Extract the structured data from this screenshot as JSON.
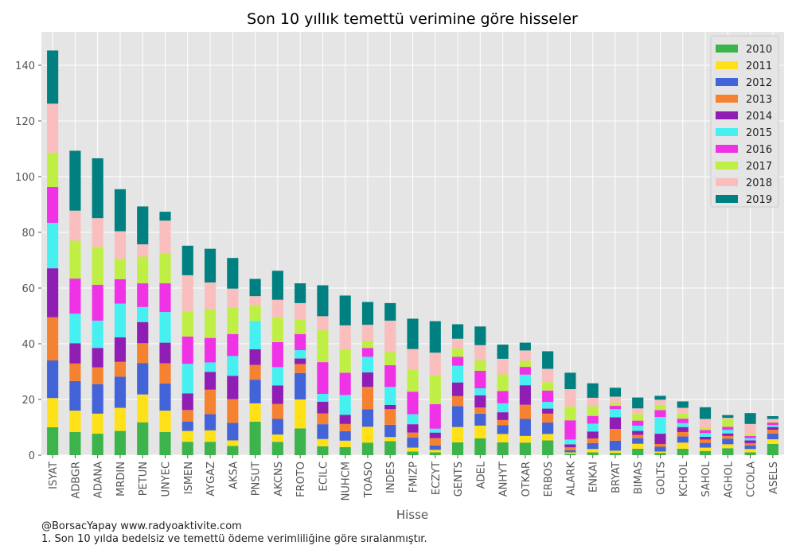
{
  "chart_data": {
    "type": "bar",
    "stacked": true,
    "title": "Son 10 yıllık temettü verimine göre hisseler",
    "xlabel": "Hisse",
    "ylabel": "",
    "ylim": [
      0,
      152
    ],
    "yticks": [
      0,
      20,
      40,
      60,
      80,
      100,
      120,
      140
    ],
    "grid": true,
    "legend_position": "top-right",
    "categories": [
      "ISYAT",
      "ADBGR",
      "ADANA",
      "MRDIN",
      "PETUN",
      "UNYEC",
      "ISMEN",
      "AYGAZ",
      "AKSA",
      "PNSUT",
      "AKCNS",
      "FROTO",
      "ECILC",
      "NUHCM",
      "TOASO",
      "INDES",
      "FMIZP",
      "ECZYT",
      "GENTS",
      "ADEL",
      "ANHYT",
      "OTKAR",
      "ERBOS",
      "ALARK",
      "ENKAI",
      "BRYAT",
      "BIMAS",
      "GOLTS",
      "KCHOL",
      "SAHOL",
      "AGHOL",
      "CCOLA",
      "ASELS"
    ],
    "series": [
      {
        "name": "2010",
        "color": "#3cb44b",
        "values": [
          10,
          8.3,
          7.7,
          8.7,
          11.8,
          8.3,
          4.8,
          4.8,
          3.3,
          12,
          4.8,
          9.6,
          3.2,
          2.9,
          4.5,
          5,
          1.3,
          1,
          4.6,
          6,
          4.6,
          4.5,
          5.3,
          0.5,
          1,
          0.8,
          2.3,
          0.8,
          2.3,
          1.5,
          2.5,
          1,
          4
        ]
      },
      {
        "name": "2011",
        "color": "#ffe119",
        "values": [
          10.5,
          7.7,
          7.2,
          8.3,
          10,
          7.7,
          3.9,
          4.1,
          2,
          6.6,
          2.6,
          10.4,
          2.6,
          2.3,
          5.7,
          1.5,
          1.4,
          0.9,
          5.5,
          4.6,
          3,
          2.4,
          2.3,
          0.5,
          1.2,
          0.8,
          1.8,
          0.5,
          2.2,
          1.2,
          1.4,
          1.2,
          1.7
        ]
      },
      {
        "name": "2012",
        "color": "#4363d8",
        "values": [
          13.5,
          10.6,
          10.6,
          11.2,
          11.2,
          9.7,
          3.4,
          5.8,
          6.3,
          8.5,
          5.6,
          9.5,
          5.3,
          3.4,
          6.3,
          4.4,
          3.6,
          1.6,
          7.5,
          4.3,
          3.2,
          6.1,
          4.1,
          0.8,
          2.1,
          3.6,
          2,
          1.7,
          2.2,
          1.7,
          2,
          1.3,
          2
        ]
      },
      {
        "name": "2013",
        "color": "#f58231",
        "values": [
          15.5,
          6.3,
          6,
          5.3,
          7.2,
          7.3,
          4.1,
          8.8,
          8.5,
          5.3,
          5.4,
          3.2,
          3.9,
          2.6,
          8,
          5.6,
          1.8,
          2.6,
          3.6,
          2.2,
          1.8,
          5.1,
          3.2,
          1,
          1.7,
          4.2,
          1.2,
          1,
          1.6,
          1.2,
          1,
          0.8,
          1.4
        ]
      },
      {
        "name": "2014",
        "color": "#911eb4",
        "values": [
          17.6,
          7.3,
          7,
          8.8,
          7.6,
          7.4,
          6,
          6.4,
          8.4,
          5.6,
          6.6,
          2,
          4.2,
          3.3,
          5.2,
          1.5,
          3,
          2,
          4.9,
          4.4,
          2.8,
          7,
          1.8,
          1.1,
          2.5,
          4.2,
          1.4,
          3.7,
          1.8,
          1,
          0.9,
          1,
          1
        ]
      },
      {
        "name": "2015",
        "color": "#46f0f0",
        "values": [
          16.3,
          10.6,
          9.8,
          12.1,
          5.4,
          11,
          10.6,
          3.4,
          7.1,
          10.2,
          6.6,
          3,
          2.8,
          7.1,
          5.6,
          6.5,
          3.6,
          1.4,
          6,
          2.5,
          3.2,
          3.8,
          2.4,
          1.7,
          2.8,
          2.9,
          1.9,
          6,
          1.4,
          1.3,
          1.3,
          0.8,
          0.7
        ]
      },
      {
        "name": "2016",
        "color": "#f032e6",
        "values": [
          12.9,
          12.6,
          12.9,
          8.8,
          8.5,
          10.3,
          9.8,
          8.8,
          7.9,
          0,
          9,
          5.8,
          11.4,
          8,
          3.2,
          7.8,
          8.1,
          8.8,
          3.2,
          6.3,
          4.4,
          2.8,
          4.1,
          6.9,
          2.8,
          1.2,
          1.8,
          2.5,
          1.6,
          1.1,
          1.1,
          0.8,
          0.9
        ]
      },
      {
        "name": "2017",
        "color": "#bfef45",
        "values": [
          12.3,
          13.6,
          13.6,
          7.3,
          9.6,
          10.9,
          9.2,
          10.2,
          9.4,
          5.7,
          8.9,
          5.2,
          11.5,
          8.4,
          2.5,
          4.7,
          7.9,
          10.5,
          3,
          3.8,
          6,
          2.2,
          3,
          5,
          3.5,
          1.2,
          2.4,
          1.9,
          1.8,
          1,
          2.8,
          0.8,
          0.6
        ]
      },
      {
        "name": "2018",
        "color": "#fabebe",
        "values": [
          17.6,
          10.8,
          10.3,
          9.9,
          4.4,
          11.6,
          12.8,
          9.7,
          6.9,
          3.2,
          6.3,
          5.9,
          5,
          8.6,
          5.8,
          11.3,
          7.4,
          8,
          3.5,
          5.4,
          5.6,
          3.7,
          4.8,
          6.2,
          3,
          2.1,
          2,
          1.8,
          2.1,
          3,
          0.4,
          3.5,
          0.7
        ]
      },
      {
        "name": "2019",
        "color": "#008080",
        "values": [
          19.1,
          21.5,
          21.5,
          15.1,
          13.6,
          3.2,
          10.6,
          12.1,
          11,
          6.2,
          10.4,
          7.1,
          11.1,
          10.7,
          8.2,
          6.3,
          10.9,
          11.3,
          5.2,
          6.7,
          5.1,
          2.8,
          6.3,
          5.9,
          5.2,
          3.2,
          3.9,
          1.4,
          2.3,
          4.2,
          1,
          3.9,
          1
        ]
      }
    ]
  },
  "footer": {
    "credit": "@BorsacYapay www.radyoaktivite.com",
    "note": " 1. Son 10 yılda bedelsiz ve temettü ödeme verimliliğine göre sıralanmıştır."
  }
}
